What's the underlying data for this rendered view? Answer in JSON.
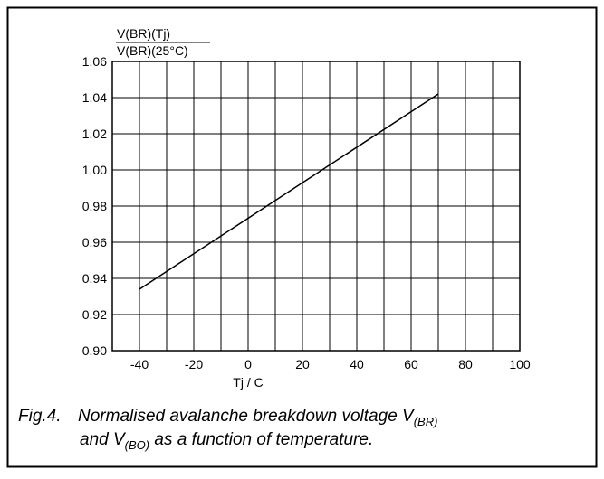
{
  "chart_data": {
    "type": "line",
    "y_label_numerator": "V(BR)(Tj)",
    "y_label_denominator": "V(BR)(25°C)",
    "x_label": "Tj / C",
    "caption": {
      "figure": "Fig.4.",
      "line1": "Normalised avalanche breakdown voltage V",
      "line1_sub": "(BR)",
      "line2_pre": "and V",
      "line2_sub": "(BO)",
      "line2_post": " as a function of temperature."
    },
    "x": [
      -40,
      70
    ],
    "series": [
      {
        "name": "V(BR)(Tj)/V(BR)(25°C)",
        "color": "#000000",
        "values": [
          0.934,
          1.042
        ]
      }
    ],
    "xlim": [
      -50,
      100
    ],
    "xticks": [
      -40,
      -20,
      0,
      20,
      40,
      60,
      80,
      100
    ],
    "xminor": [
      -50,
      -30,
      -10,
      10,
      30,
      50,
      70,
      90
    ],
    "ylim": [
      0.9,
      1.06
    ],
    "yticks": [
      {
        "value": 0.9,
        "label": "0.90"
      },
      {
        "value": 0.92,
        "label": "0.92"
      },
      {
        "value": 0.94,
        "label": "0.94"
      },
      {
        "value": 0.96,
        "label": "0.96"
      },
      {
        "value": 0.98,
        "label": "0.98"
      },
      {
        "value": 1.0,
        "label": "1.00"
      },
      {
        "value": 1.02,
        "label": "1.02"
      },
      {
        "value": 1.04,
        "label": "1.04"
      },
      {
        "value": 1.06,
        "label": "1.06"
      }
    ],
    "grid": true
  }
}
